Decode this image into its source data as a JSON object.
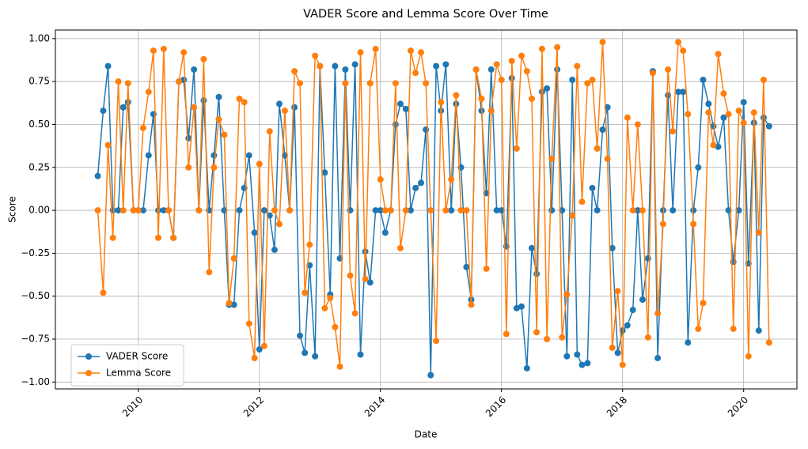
{
  "chart_data": {
    "type": "line",
    "title": "VADER Score and Lemma Score Over Time",
    "xlabel": "Date",
    "ylabel": "Score",
    "x": [
      2009.33,
      2009.42,
      2009.5,
      2009.58,
      2009.67,
      2009.75,
      2009.83,
      2009.92,
      2010,
      2010.08,
      2010.17,
      2010.25,
      2010.33,
      2010.42,
      2010.5,
      2010.58,
      2010.67,
      2010.75,
      2010.83,
      2010.92,
      2011,
      2011.08,
      2011.17,
      2011.25,
      2011.33,
      2011.42,
      2011.5,
      2011.58,
      2011.67,
      2011.75,
      2011.83,
      2011.92,
      2012,
      2012.08,
      2012.17,
      2012.25,
      2012.33,
      2012.42,
      2012.5,
      2012.58,
      2012.67,
      2012.75,
      2012.83,
      2012.92,
      2013,
      2013.08,
      2013.17,
      2013.25,
      2013.33,
      2013.42,
      2013.5,
      2013.58,
      2013.67,
      2013.75,
      2013.83,
      2013.92,
      2014,
      2014.08,
      2014.17,
      2014.25,
      2014.33,
      2014.42,
      2014.5,
      2014.58,
      2014.67,
      2014.75,
      2014.83,
      2014.92,
      2015,
      2015.08,
      2015.17,
      2015.25,
      2015.33,
      2015.42,
      2015.5,
      2015.58,
      2015.67,
      2015.75,
      2015.83,
      2015.92,
      2016,
      2016.08,
      2016.17,
      2016.25,
      2016.33,
      2016.42,
      2016.5,
      2016.58,
      2016.67,
      2016.75,
      2016.83,
      2016.92,
      2017,
      2017.08,
      2017.17,
      2017.25,
      2017.33,
      2017.42,
      2017.5,
      2017.58,
      2017.67,
      2017.75,
      2017.83,
      2017.92,
      2018,
      2018.08,
      2018.17,
      2018.25,
      2018.33,
      2018.42,
      2018.5,
      2018.58,
      2018.67,
      2018.75,
      2018.83,
      2018.92,
      2019,
      2019.08,
      2019.17,
      2019.25,
      2019.33,
      2019.42,
      2019.5,
      2019.58,
      2019.67,
      2019.75,
      2019.83,
      2019.92,
      2020,
      2020.08,
      2020.17,
      2020.25,
      2020.33,
      2020.42
    ],
    "series": [
      {
        "name": "VADER Score",
        "color": "#1f77b4",
        "values": [
          0.2,
          0.58,
          0.84,
          0,
          0,
          0.6,
          0.63,
          0,
          0,
          0,
          0.32,
          0.56,
          0,
          0,
          0,
          -0.16,
          0.75,
          0.76,
          0.42,
          0.82,
          0,
          0.64,
          0,
          0.32,
          0.66,
          0,
          -0.55,
          -0.55,
          0,
          0.13,
          0.32,
          -0.13,
          -0.81,
          0,
          -0.03,
          -0.23,
          0.62,
          0.32,
          0,
          0.6,
          -0.73,
          -0.83,
          -0.32,
          -0.85,
          0.84,
          0.22,
          -0.49,
          0.84,
          -0.28,
          0.82,
          0,
          0.85,
          -0.84,
          -0.24,
          -0.42,
          0,
          0,
          -0.13,
          0,
          0.5,
          0.62,
          0.59,
          0,
          0.13,
          0.16,
          0.47,
          -0.96,
          0.84,
          0.58,
          0.85,
          0,
          0.62,
          0.25,
          -0.33,
          -0.52,
          0.82,
          0.58,
          0.1,
          0.82,
          0,
          0,
          -0.21,
          0.77,
          -0.57,
          -0.56,
          -0.92,
          -0.22,
          -0.37,
          0.69,
          0.71,
          0,
          0.82,
          0,
          -0.85,
          0.76,
          -0.84,
          -0.9,
          -0.89,
          0.13,
          0,
          0.47,
          0.6,
          -0.22,
          -0.83,
          -0.7,
          -0.67,
          -0.58,
          0,
          -0.52,
          -0.28,
          0.81,
          -0.86,
          0,
          0.67,
          0,
          0.69,
          0.69,
          -0.77,
          0,
          0.25,
          0.76,
          0.62,
          0.49,
          0.37,
          0.54,
          0,
          -0.3,
          0,
          0.63,
          -0.31,
          0.51,
          -0.7,
          0.54,
          0.49
        ]
      },
      {
        "name": "Lemma Score",
        "color": "#ff7f0e",
        "values": [
          0,
          -0.48,
          0.38,
          -0.16,
          0.75,
          0,
          0.74,
          0,
          0,
          0.48,
          0.69,
          0.93,
          -0.16,
          0.94,
          0,
          -0.16,
          0.75,
          0.92,
          0.25,
          0.6,
          0,
          0.88,
          -0.36,
          0.25,
          0.53,
          0.44,
          -0.54,
          -0.28,
          0.65,
          0.63,
          -0.66,
          -0.86,
          0.27,
          -0.79,
          0.46,
          0,
          -0.08,
          0.58,
          0,
          0.81,
          0.74,
          -0.48,
          -0.2,
          0.9,
          0.84,
          -0.57,
          -0.51,
          -0.68,
          -0.91,
          0.74,
          -0.38,
          -0.6,
          0.92,
          -0.4,
          0.74,
          0.94,
          0.18,
          0,
          0,
          0.74,
          -0.22,
          0,
          0.93,
          0.8,
          0.92,
          0.74,
          0,
          -0.76,
          0.63,
          0,
          0.18,
          0.67,
          0,
          0,
          -0.55,
          0.82,
          0.65,
          -0.34,
          0.58,
          0.85,
          0.76,
          -0.72,
          0.87,
          0.36,
          0.9,
          0.81,
          0.65,
          -0.71,
          0.94,
          -0.75,
          0.3,
          0.95,
          -0.74,
          -0.49,
          -0.03,
          0.84,
          0.05,
          0.74,
          0.76,
          0.36,
          0.98,
          0.3,
          -0.8,
          -0.47,
          -0.9,
          0.54,
          0,
          0.5,
          0,
          -0.74,
          0.8,
          -0.6,
          -0.08,
          0.82,
          0.46,
          0.98,
          0.93,
          0.56,
          -0.08,
          -0.69,
          -0.54,
          0.57,
          0.38,
          0.91,
          0.68,
          0.56,
          -0.69,
          0.58,
          0.51,
          -0.85,
          0.57,
          -0.13,
          0.76,
          -0.77
        ]
      }
    ],
    "xlim": [
      2008.63,
      2020.88
    ],
    "xticks": [
      2010,
      2012,
      2014,
      2016,
      2018,
      2020
    ],
    "ylim": [
      -1.04,
      1.05
    ],
    "yticks": [
      {
        "value": -1,
        "label": "−1.00"
      },
      {
        "value": -0.75,
        "label": "−0.75"
      },
      {
        "value": -0.5,
        "label": "−0.50"
      },
      {
        "value": -0.25,
        "label": "−0.25"
      },
      {
        "value": 0,
        "label": "0.00"
      },
      {
        "value": 0.25,
        "label": "0.25"
      },
      {
        "value": 0.5,
        "label": "0.50"
      },
      {
        "value": 0.75,
        "label": "0.75"
      },
      {
        "value": 1,
        "label": "1.00"
      }
    ],
    "grid": true,
    "legend": "lower left"
  }
}
